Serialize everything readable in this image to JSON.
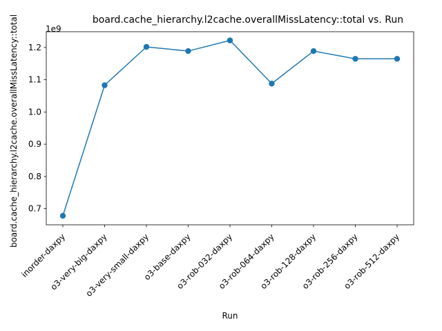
{
  "chart_data": {
    "type": "line",
    "title": "board.cache_hierarchy.l2cache.overallMissLatency::total vs. Run",
    "xlabel": "Run",
    "ylabel": "board.cache_hierarchy.l2cache.overallMissLatency::total",
    "offset_label": "1e9",
    "categories": [
      "inorder-daxpy",
      "o3-very-big-daxpy",
      "o3-very-small-daxpy",
      "o3-base-daxpy",
      "o3-rob-032-daxpy",
      "o3-rob-064-daxpy",
      "o3-rob-128-daxpy",
      "o3-rob-256-daxpy",
      "o3-rob-512-daxpy"
    ],
    "series": [
      {
        "values": [
          0.678,
          1.083,
          1.202,
          1.189,
          1.222,
          1.088,
          1.189,
          1.165,
          1.165
        ],
        "color": "#1f77b4"
      }
    ],
    "ylim": [
      0.65,
      1.249
    ],
    "yticks": [
      0.7,
      0.8,
      0.9,
      1.0,
      1.1,
      1.2
    ],
    "ytick_labels": [
      "0.7",
      "0.8",
      "0.9",
      "1.0",
      "1.1",
      "1.2"
    ],
    "grid": false,
    "legend": "none"
  }
}
